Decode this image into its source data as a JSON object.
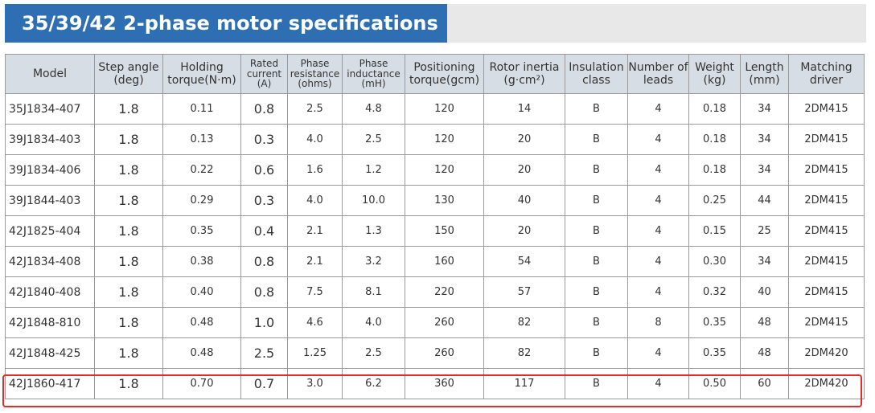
{
  "title": "35/39/42 2-phase motor specifications",
  "colors": {
    "title_bg": "#2e6fb3",
    "header_bg": "#d7dde4",
    "highlight": "#e22b2b"
  },
  "columns": [
    "Model",
    "Step angle (deg)",
    "Holding torque(N·m)",
    "Rated current (A)",
    "Phase resistance (ohms)",
    "Phase inductance (mH)",
    "Positioning torque(gcm)",
    "Rotor inertia (g·cm²)",
    "Insulation class",
    "Number of leads",
    "Weight (kg)",
    "Length (mm)",
    "Matching driver"
  ],
  "rows": [
    [
      "35J1834-407",
      "1.8",
      "0.11",
      "0.8",
      "2.5",
      "4.8",
      "120",
      "14",
      "B",
      "4",
      "0.18",
      "34",
      "2DM415"
    ],
    [
      "39J1834-403",
      "1.8",
      "0.13",
      "0.3",
      "4.0",
      "2.5",
      "120",
      "20",
      "B",
      "4",
      "0.18",
      "34",
      "2DM415"
    ],
    [
      "39J1834-406",
      "1.8",
      "0.22",
      "0.6",
      "1.6",
      "1.2",
      "120",
      "20",
      "B",
      "4",
      "0.18",
      "34",
      "2DM415"
    ],
    [
      "39J1844-403",
      "1.8",
      "0.29",
      "0.3",
      "4.0",
      "10.0",
      "130",
      "40",
      "B",
      "4",
      "0.25",
      "44",
      "2DM415"
    ],
    [
      "42J1825-404",
      "1.8",
      "0.35",
      "0.4",
      "2.1",
      "1.3",
      "150",
      "20",
      "B",
      "4",
      "0.15",
      "25",
      "2DM415"
    ],
    [
      "42J1834-408",
      "1.8",
      "0.38",
      "0.8",
      "2.1",
      "3.2",
      "160",
      "54",
      "B",
      "4",
      "0.30",
      "34",
      "2DM415"
    ],
    [
      "42J1840-408",
      "1.8",
      "0.40",
      "0.8",
      "7.5",
      "8.1",
      "220",
      "57",
      "B",
      "4",
      "0.32",
      "40",
      "2DM415"
    ],
    [
      "42J1848-810",
      "1.8",
      "0.48",
      "1.0",
      "4.6",
      "4.0",
      "260",
      "82",
      "B",
      "8",
      "0.35",
      "48",
      "2DM415"
    ],
    [
      "42J1848-425",
      "1.8",
      "0.48",
      "2.5",
      "1.25",
      "2.5",
      "260",
      "82",
      "B",
      "4",
      "0.35",
      "48",
      "2DM420"
    ],
    [
      "42J1860-417",
      "1.8",
      "0.70",
      "0.7",
      "3.0",
      "6.2",
      "360",
      "117",
      "B",
      "4",
      "0.50",
      "60",
      "2DM420"
    ]
  ]
}
